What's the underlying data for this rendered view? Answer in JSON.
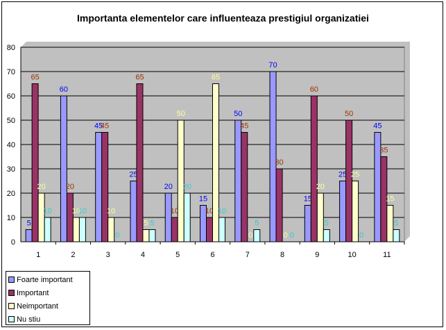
{
  "chart_data": {
    "type": "bar",
    "title": "Importanta elementelor care influenteaza prestigiul organizatiei",
    "xlabel": "",
    "ylabel": "",
    "ylim": [
      0,
      80
    ],
    "yticks": [
      "0",
      "10",
      "20",
      "30",
      "40",
      "50",
      "60",
      "70",
      "80"
    ],
    "categories": [
      "1",
      "2",
      "3",
      "4",
      "5",
      "6",
      "7",
      "8",
      "9",
      "10",
      "11"
    ],
    "grid": true,
    "legend_position": "bottom-left",
    "series": [
      {
        "name": "Foarte important",
        "color": "#9999ff",
        "label_color": "#0000ff",
        "values": [
          5,
          60,
          45,
          25,
          20,
          15,
          50,
          70,
          15,
          25,
          45
        ]
      },
      {
        "name": "Important",
        "color": "#993366",
        "label_color": "#993300",
        "values": [
          65,
          20,
          45,
          65,
          10,
          10,
          45,
          30,
          60,
          50,
          35
        ]
      },
      {
        "name": "Neimportant",
        "color": "#ffffcc",
        "label_color": "#ffff99",
        "values": [
          20,
          10,
          10,
          5,
          50,
          65,
          0,
          0,
          20,
          25,
          15
        ]
      },
      {
        "name": "Nu stiu",
        "color": "#ccffff",
        "label_color": "#33cccc",
        "values": [
          10,
          10,
          0,
          5,
          20,
          10,
          5,
          0,
          5,
          0,
          5
        ]
      }
    ],
    "plot_background": "#c0c0c0"
  }
}
